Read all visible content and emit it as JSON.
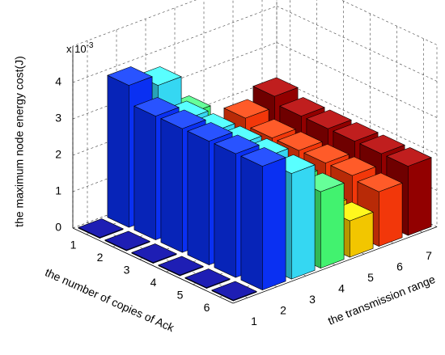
{
  "chart_data": {
    "type": "bar3d",
    "xlabel": "the transmission range",
    "ylabel": "the number of copies of Ack",
    "zlabel": "the maximum node energy cost(J)",
    "z_multiplier": {
      "base": "x 10",
      "exponent": "-3"
    },
    "xticks": [
      1,
      2,
      3,
      4,
      5,
      6,
      7
    ],
    "yticks": [
      1,
      2,
      3,
      4,
      5,
      6
    ],
    "zlim": [
      0,
      5
    ],
    "zticks": [
      0,
      1,
      2,
      3,
      4
    ],
    "colors": [
      "#00008f",
      "#0a32ff",
      "#38e2ff",
      "#45ff75",
      "#ffd000",
      "#ff3a0a",
      "#9a0000"
    ],
    "values": [
      [
        0.02,
        3.9,
        3.6,
        2.5,
        1.4,
        1.8,
        2.1
      ],
      [
        0.02,
        3.4,
        3.0,
        2.1,
        1.0,
        1.6,
        1.9
      ],
      [
        0.02,
        3.4,
        3.0,
        2.1,
        1.0,
        1.6,
        1.9
      ],
      [
        0.02,
        3.4,
        3.0,
        2.1,
        1.0,
        1.6,
        1.9
      ],
      [
        0.02,
        3.4,
        3.0,
        2.1,
        1.0,
        1.6,
        1.9
      ],
      [
        0.02,
        3.4,
        2.9,
        2.1,
        1.0,
        1.5,
        1.9
      ]
    ],
    "grid": true
  }
}
